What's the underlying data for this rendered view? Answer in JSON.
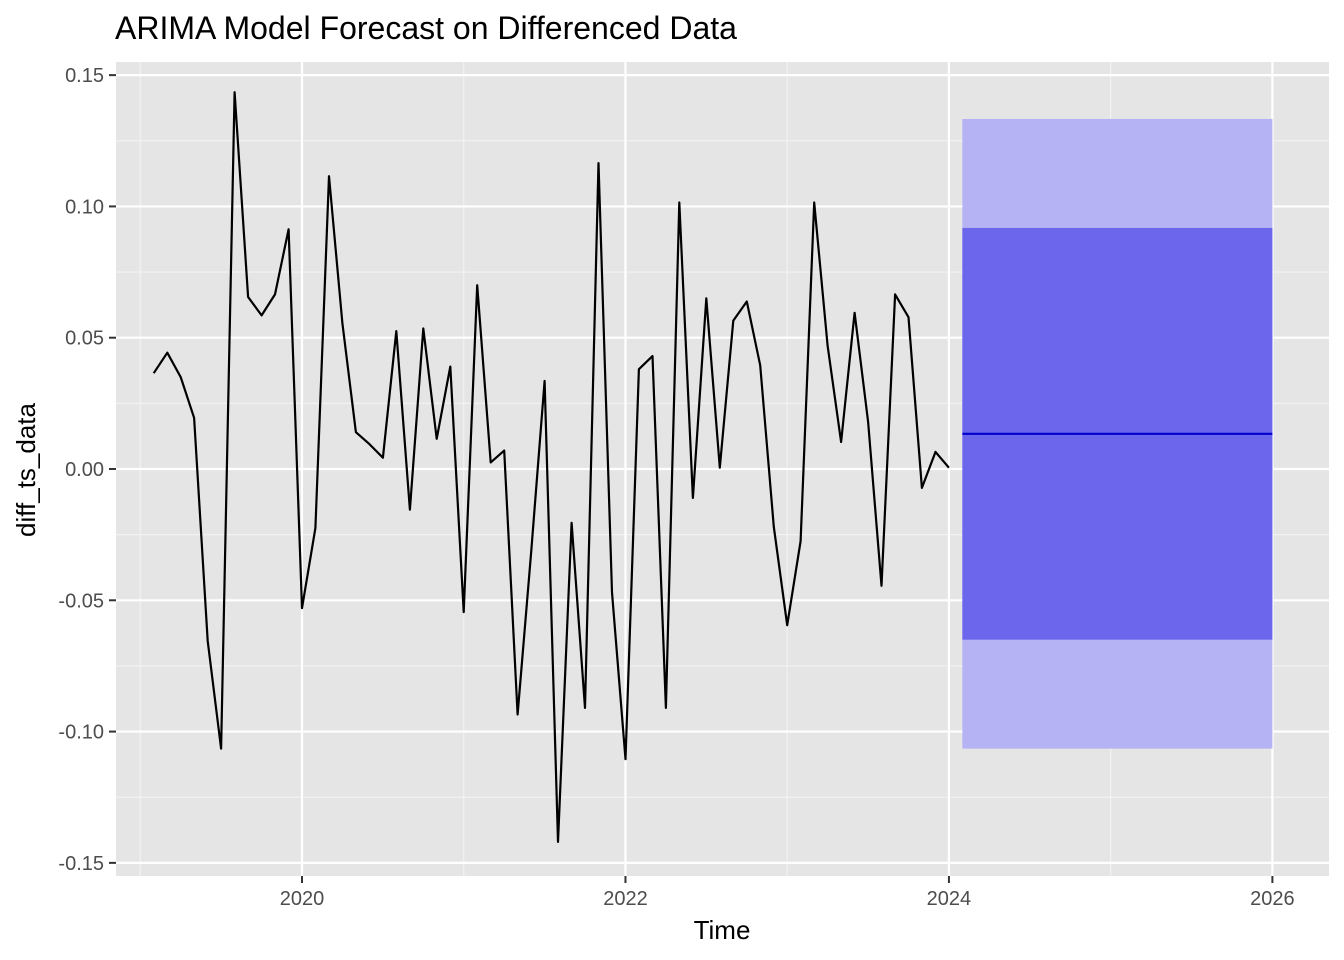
{
  "chart_data": {
    "type": "line",
    "title": "ARIMA Model Forecast on Differenced Data",
    "xlabel": "Time",
    "ylabel": "diff_ts_data",
    "xlim": [
      2018.85,
      2026.35
    ],
    "ylim": [
      -0.155,
      0.155
    ],
    "x_ticks": [
      2020,
      2022,
      2024,
      2026
    ],
    "x_tick_labels": [
      "2020",
      "2022",
      "2024",
      "2026"
    ],
    "y_ticks": [
      0.15,
      0.1,
      0.05,
      0.0,
      -0.05,
      -0.1,
      -0.15
    ],
    "y_tick_labels": [
      "0.15",
      "0.10",
      "0.05",
      "0.00",
      "-0.05",
      "-0.10",
      "-0.15"
    ],
    "grid": true,
    "series": [
      {
        "color": "#000000",
        "x": [
          2019.083,
          2019.167,
          2019.25,
          2019.333,
          2019.417,
          2019.5,
          2019.583,
          2019.667,
          2019.75,
          2019.833,
          2019.917,
          2020.0,
          2020.083,
          2020.167,
          2020.25,
          2020.333,
          2020.417,
          2020.5,
          2020.583,
          2020.667,
          2020.75,
          2020.833,
          2020.917,
          2021.0,
          2021.083,
          2021.167,
          2021.25,
          2021.333,
          2021.417,
          2021.5,
          2021.583,
          2021.667,
          2021.75,
          2021.833,
          2021.917,
          2022.0,
          2022.083,
          2022.167,
          2022.25,
          2022.333,
          2022.417,
          2022.5,
          2022.583,
          2022.667,
          2022.75,
          2022.833,
          2022.917,
          2023.0,
          2023.083,
          2023.167,
          2023.25,
          2023.333,
          2023.417,
          2023.5,
          2023.583,
          2023.667,
          2023.75,
          2023.833,
          2023.917,
          2024.0
        ],
        "y": [
          0.0365,
          0.0443,
          0.035,
          0.0195,
          -0.0655,
          -0.1065,
          0.1435,
          0.0655,
          0.0585,
          0.0665,
          0.0913,
          -0.053,
          -0.0225,
          0.1115,
          0.0555,
          0.014,
          0.0095,
          0.0043,
          0.0525,
          -0.0155,
          0.0535,
          0.0115,
          0.039,
          -0.0545,
          0.07,
          0.0025,
          0.007,
          -0.0935,
          -0.0315,
          0.0335,
          -0.142,
          -0.0205,
          -0.091,
          0.1165,
          -0.047,
          -0.1105,
          0.038,
          0.043,
          -0.091,
          0.1015,
          -0.011,
          0.065,
          0.0005,
          0.0565,
          0.0638,
          0.0395,
          -0.022,
          -0.0595,
          -0.0275,
          0.1015,
          0.047,
          0.0103,
          0.0595,
          0.018,
          -0.0445,
          0.0665,
          0.0578,
          -0.0072,
          0.0065,
          0.0005
        ]
      }
    ],
    "forecast": {
      "x_start": 2024.083,
      "x_end": 2026.0,
      "mean": 0.0134,
      "lower80": -0.065,
      "upper80": 0.0918,
      "lower95": -0.1065,
      "upper95": 0.1333,
      "mean_color": "#0000cc",
      "band80_color": "#6b66ec",
      "band95_color": "#b5b3f3"
    },
    "colors": {
      "panel_background": "#e5e5e5",
      "grid_major": "#ffffff",
      "grid_minor": "#f2f2f2",
      "tick_label": "#4d4d4d"
    }
  }
}
